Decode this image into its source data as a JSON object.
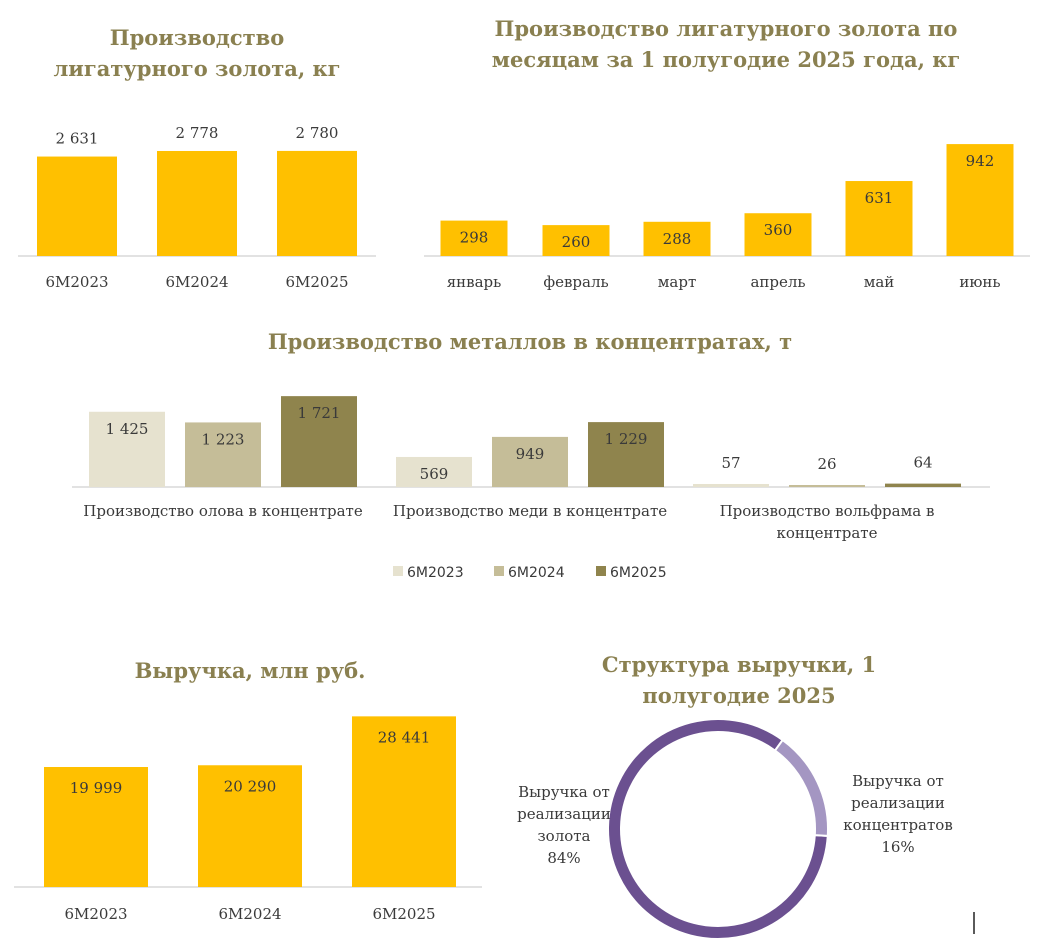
{
  "colors": {
    "title": "#8a8050",
    "gold": "#ffc000",
    "axis": "#d9d9d9",
    "s2023": "#e6e2cf",
    "s2024": "#c5bd98",
    "s2025": "#8f844d",
    "donut_main": "#6b5090",
    "donut_minor": "#a496c2",
    "text": "#3a3a3a"
  },
  "chart_data": [
    {
      "id": "ligature-annual",
      "type": "bar",
      "title": "Производство лигатурного золота, кг",
      "title_lines": [
        "Производство",
        "лигатурного золота, кг"
      ],
      "categories": [
        "6М2023",
        "6М2024",
        "6М2025"
      ],
      "values": [
        2631,
        2778,
        2780
      ],
      "value_labels": [
        "2 631",
        "2 778",
        "2 780"
      ]
    },
    {
      "id": "ligature-monthly",
      "type": "bar",
      "title": "Производство лигатурного золота по месяцам за 1 полугодие 2025 года, кг",
      "title_lines": [
        "Производство лигатурного золота по",
        "месяцам за 1 полугодие 2025 года, кг"
      ],
      "categories": [
        "январь",
        "февраль",
        "март",
        "апрель",
        "май",
        "июнь"
      ],
      "values": [
        298,
        260,
        288,
        360,
        631,
        942
      ],
      "value_labels": [
        "298",
        "260",
        "288",
        "360",
        "631",
        "942"
      ]
    },
    {
      "id": "metals",
      "type": "bar",
      "title": "Производство металлов в концентратах, т",
      "categories": [
        "Производство олова в концентрате",
        "Производство меди в концентрате",
        "Производство вольфрама в концентрате"
      ],
      "category_lines": [
        [
          "Производство олова в концентрате"
        ],
        [
          "Производство меди в концентрате"
        ],
        [
          "Производство вольфрама в",
          "концентрате"
        ]
      ],
      "series": [
        {
          "name": "6М2023",
          "values": [
            1425,
            569,
            57
          ],
          "value_labels": [
            "1 425",
            "569",
            "57"
          ]
        },
        {
          "name": "6М2024",
          "values": [
            1223,
            949,
            26
          ],
          "value_labels": [
            "1 223",
            "949",
            "26"
          ]
        },
        {
          "name": "6М2025",
          "values": [
            1721,
            1229,
            64
          ],
          "value_labels": [
            "1 721",
            "1 229",
            "64"
          ]
        }
      ],
      "legend": "bottom"
    },
    {
      "id": "revenue",
      "type": "bar",
      "title": "Выручка, млн руб.",
      "categories": [
        "6М2023",
        "6М2024",
        "6М2025"
      ],
      "values": [
        19999,
        20290,
        28441
      ],
      "value_labels": [
        "19 999",
        "20 290",
        "28 441"
      ]
    },
    {
      "id": "revenue-structure",
      "type": "pie",
      "title": "Структура выручки, 1 полугодие 2025",
      "title_lines": [
        "Структура выручки, 1",
        "полугодие 2025"
      ],
      "slices": [
        {
          "label_lines": [
            "Выручка от",
            "реализации",
            "золота",
            "84%"
          ],
          "value": 84
        },
        {
          "label_lines": [
            "Выручка от",
            "реализации",
            "концентратов",
            "16%"
          ],
          "value": 16
        }
      ]
    }
  ]
}
